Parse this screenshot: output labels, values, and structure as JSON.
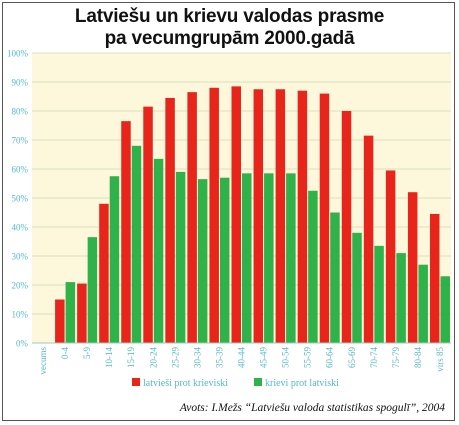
{
  "title_line1": "Latviešu un krievu valodas prasme",
  "title_line2": "pa vecumgrupām 2000.gadā",
  "source": "Avots: I.Mežs “Latviešu valoda statistikas spogulī”, 2004",
  "colors": {
    "plot_bg": "#fdf7dc",
    "grid": "#c8d9b0",
    "axis_text": "#55b8c8",
    "red": "#e8251b",
    "green": "#2fb24a"
  },
  "chart_data": {
    "type": "bar",
    "categories": [
      "vecums",
      "0-4",
      "5-9",
      "10-14",
      "15-19",
      "20-24",
      "25-29",
      "30-34",
      "35-39",
      "40-44",
      "45-49",
      "50-54",
      "55-59",
      "60-64",
      "65-69",
      "70-74",
      "75-79",
      "80-84",
      "virs 85"
    ],
    "series": [
      {
        "name": "latvieši prot krieviski",
        "color": "#e8251b",
        "values": [
          null,
          15,
          20.5,
          48,
          76.5,
          81.5,
          84.5,
          86.5,
          88,
          88.5,
          87.5,
          87.5,
          87,
          86,
          80,
          71.5,
          59.5,
          52,
          44.5
        ]
      },
      {
        "name": "krievi prot latviski",
        "color": "#2fb24a",
        "values": [
          null,
          21,
          36.5,
          57.5,
          68,
          63.5,
          59,
          56.5,
          57,
          58.5,
          58.5,
          58.5,
          52.5,
          45,
          38,
          33.5,
          31,
          27,
          23
        ]
      }
    ],
    "ylim": [
      0,
      100
    ],
    "yticks": [
      "0%",
      "10%",
      "20%",
      "30%",
      "40%",
      "50%",
      "60%",
      "70%",
      "80%",
      "90%",
      "100%"
    ],
    "grid": true,
    "legend": "bottom"
  }
}
